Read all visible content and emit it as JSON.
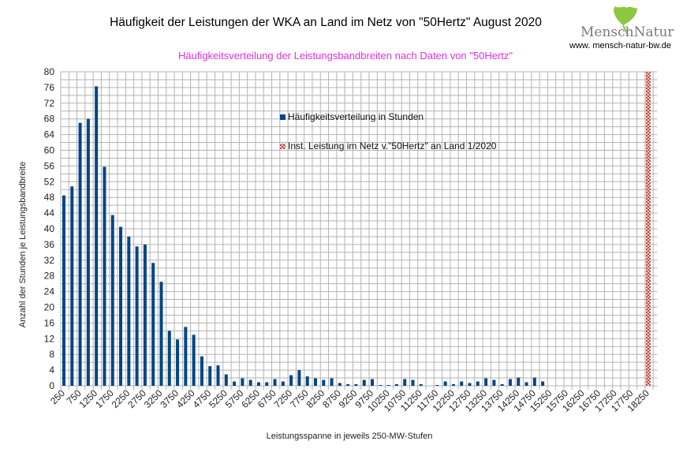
{
  "header": {
    "title": "Häufigkeit der Leistungen der WKA an Land im Netz von \"50Hertz\" August 2020",
    "subtitle": "Häufigkeitsverteilung der Leistungsbandbreiten nach Daten von \"50Hertz\"",
    "logo_text": "MenschNatur",
    "logo_url": "www. mensch-natur-bw.de"
  },
  "chart_data": {
    "type": "bar",
    "title": "Häufigkeit der Leistungen der WKA an Land im Netz von \"50Hertz\" August 2020",
    "subtitle": "Häufigkeitsverteilung der Leistungsbandbreiten nach Daten von \"50Hertz\"",
    "xlabel": "Leistungsspanne in jeweils 250-MW-Stufen",
    "ylabel": "Anzahl der Stunden je Leistungsbandbreite",
    "ylim": [
      0,
      80
    ],
    "yticks": [
      0,
      4,
      8,
      12,
      16,
      20,
      24,
      28,
      32,
      36,
      40,
      44,
      48,
      52,
      56,
      60,
      64,
      68,
      72,
      76,
      80
    ],
    "grid": true,
    "legend_position": "top-center",
    "categories": [
      250,
      500,
      750,
      1000,
      1250,
      1500,
      1750,
      2000,
      2250,
      2500,
      2750,
      3000,
      3250,
      3500,
      3750,
      4000,
      4250,
      4500,
      4750,
      5000,
      5250,
      5500,
      5750,
      6000,
      6250,
      6500,
      6750,
      7000,
      7250,
      7500,
      7750,
      8000,
      8250,
      8500,
      8750,
      9000,
      9250,
      9500,
      9750,
      10000,
      10250,
      10500,
      10750,
      11000,
      11250,
      11500,
      11750,
      12000,
      12250,
      12500,
      12750,
      13000,
      13250,
      13500,
      13750,
      14000,
      14250,
      14500,
      14750,
      15000,
      15250,
      15500,
      15750,
      16000,
      16250,
      16500,
      16750,
      17000,
      17250,
      17500,
      17750,
      18000,
      18250
    ],
    "tick_labels": [
      "250",
      "750",
      "1250",
      "1750",
      "2250",
      "2750",
      "3250",
      "3750",
      "4250",
      "4750",
      "5250",
      "5750",
      "6250",
      "6750",
      "7250",
      "7750",
      "8250",
      "8750",
      "9250",
      "9750",
      "10250",
      "10750",
      "11250",
      "11750",
      "12250",
      "12750",
      "13250",
      "13750",
      "14250",
      "14750",
      "15250",
      "15750",
      "16250",
      "16750",
      "17250",
      "17750",
      "18250"
    ],
    "series": [
      {
        "name": "Häufigkeitsverteilung in Stunden",
        "color": "#004586",
        "values": [
          48.5,
          50.8,
          67,
          68,
          76.3,
          55.8,
          43.5,
          40.5,
          38,
          35.5,
          36,
          31.3,
          26.5,
          14,
          11.8,
          15,
          13,
          7.5,
          5,
          5.2,
          2.9,
          1.1,
          1.9,
          1.5,
          0.9,
          0.9,
          1.7,
          1.1,
          2.7,
          4.0,
          2.4,
          1.9,
          1.5,
          1.9,
          0.7,
          0.4,
          0.4,
          1.5,
          1.7,
          0.2,
          0.2,
          0.4,
          1.7,
          1.5,
          0.4,
          0,
          0.2,
          1.1,
          0.4,
          1.1,
          0.7,
          1.1,
          1.9,
          1.5,
          0.4,
          1.7,
          2.1,
          0.9,
          2.1,
          1.1,
          0,
          0,
          0,
          0,
          0,
          0,
          0,
          0,
          0,
          0,
          0,
          0,
          0
        ]
      },
      {
        "name": "Inst. Leistung im Netz v.\"50Hertz\" an Land 1/2020",
        "color": "#c0392b",
        "pattern": "hatched",
        "category": 18250,
        "value": 80
      }
    ]
  }
}
